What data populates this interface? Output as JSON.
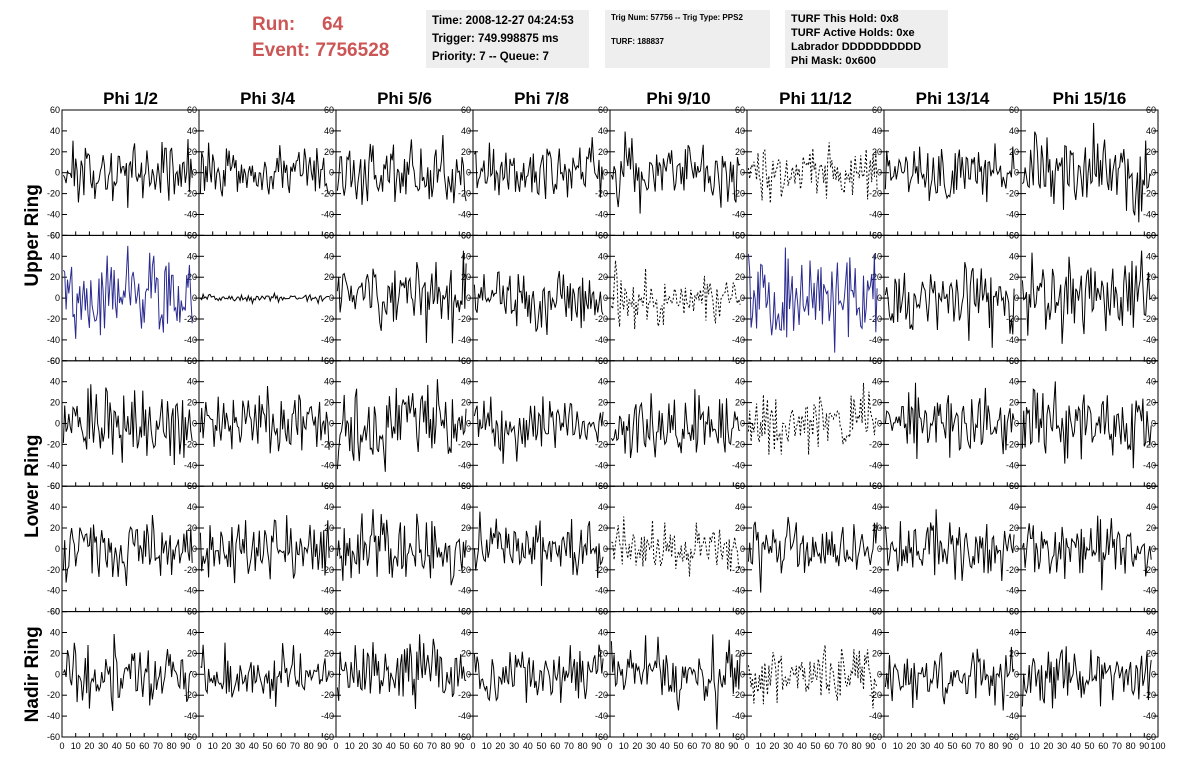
{
  "header": {
    "run_label": "Run:",
    "run_value": "64",
    "event_label": "Event:",
    "event_value": "7756528"
  },
  "info_box_1": {
    "time": "Time: 2008-12-27 04:24:53",
    "trigger": "Trigger: 749.998875 ms",
    "priority": "Priority: 7 -- Queue: 7"
  },
  "info_box_2": {
    "trig": "Trig Num: 57756 -- Trig Type: PPS2",
    "turf": "TURF: 188837"
  },
  "info_box_3": {
    "hold": "TURF This Hold: 0x8",
    "active": "TURF Active Holds: 0xe",
    "labrador": "Labrador DDDDDDDDDD",
    "phimask": "Phi Mask: 0x600"
  },
  "colors": {
    "trace": "#000000",
    "highlight_trace": "#2b2b8f",
    "run_text": "#cc5555",
    "info_bg": "#eeeeee"
  },
  "chart_data": {
    "type": "line",
    "columns": [
      "Phi 1/2",
      "Phi 3/4",
      "Phi 5/6",
      "Phi 7/8",
      "Phi 9/10",
      "Phi 11/12",
      "Phi 13/14",
      "Phi 15/16"
    ],
    "rows": [
      {
        "label": "Upper Ring",
        "panels": 2
      },
      {
        "label": "Lower Ring",
        "panels": 2
      },
      {
        "label": "Nadir Ring",
        "panels": 1
      }
    ],
    "xlim": [
      0,
      100
    ],
    "ylim": [
      -60,
      60
    ],
    "x_tick_labels": [
      "0",
      "10",
      "20",
      "30",
      "40",
      "50",
      "60",
      "70",
      "80",
      "90",
      "100"
    ],
    "y_tick_labels": [
      "-60",
      "-40",
      "-20",
      "0",
      "20",
      "40",
      "60"
    ],
    "samples_per_trace": 95,
    "panels": [
      [
        {
          "style": "solid",
          "amp": 14
        },
        {
          "style": "solid",
          "amp": 12
        },
        {
          "style": "solid",
          "amp": 15
        },
        {
          "style": "solid",
          "amp": 13
        },
        {
          "style": "solid",
          "amp": 15
        },
        {
          "style": "dashed",
          "amp": 12
        },
        {
          "style": "solid",
          "amp": 14
        },
        {
          "style": "solid",
          "amp": 17
        }
      ],
      [
        {
          "style": "blue",
          "amp": 19
        },
        {
          "style": "solid",
          "amp": 2
        },
        {
          "style": "solid",
          "amp": 16
        },
        {
          "style": "solid",
          "amp": 14
        },
        {
          "style": "dashed",
          "amp": 13
        },
        {
          "style": "blue",
          "amp": 22
        },
        {
          "style": "solid",
          "amp": 16
        },
        {
          "style": "solid",
          "amp": 18
        }
      ],
      [
        {
          "style": "solid",
          "amp": 18
        },
        {
          "style": "solid",
          "amp": 16
        },
        {
          "style": "solid",
          "amp": 17
        },
        {
          "style": "solid",
          "amp": 15
        },
        {
          "style": "solid",
          "amp": 14
        },
        {
          "style": "dashed",
          "amp": 15
        },
        {
          "style": "solid",
          "amp": 15
        },
        {
          "style": "solid",
          "amp": 16
        }
      ],
      [
        {
          "style": "solid",
          "amp": 14
        },
        {
          "style": "solid",
          "amp": 15
        },
        {
          "style": "solid",
          "amp": 15
        },
        {
          "style": "solid",
          "amp": 14
        },
        {
          "style": "dashed",
          "amp": 12
        },
        {
          "style": "solid",
          "amp": 13
        },
        {
          "style": "solid",
          "amp": 14
        },
        {
          "style": "solid",
          "amp": 14
        }
      ],
      [
        {
          "style": "solid",
          "amp": 16
        },
        {
          "style": "solid",
          "amp": 12
        },
        {
          "style": "solid",
          "amp": 14
        },
        {
          "style": "solid",
          "amp": 12
        },
        {
          "style": "solid",
          "amp": 15
        },
        {
          "style": "dashed",
          "amp": 14
        },
        {
          "style": "solid",
          "amp": 14
        },
        {
          "style": "solid",
          "amp": 13
        }
      ]
    ]
  }
}
